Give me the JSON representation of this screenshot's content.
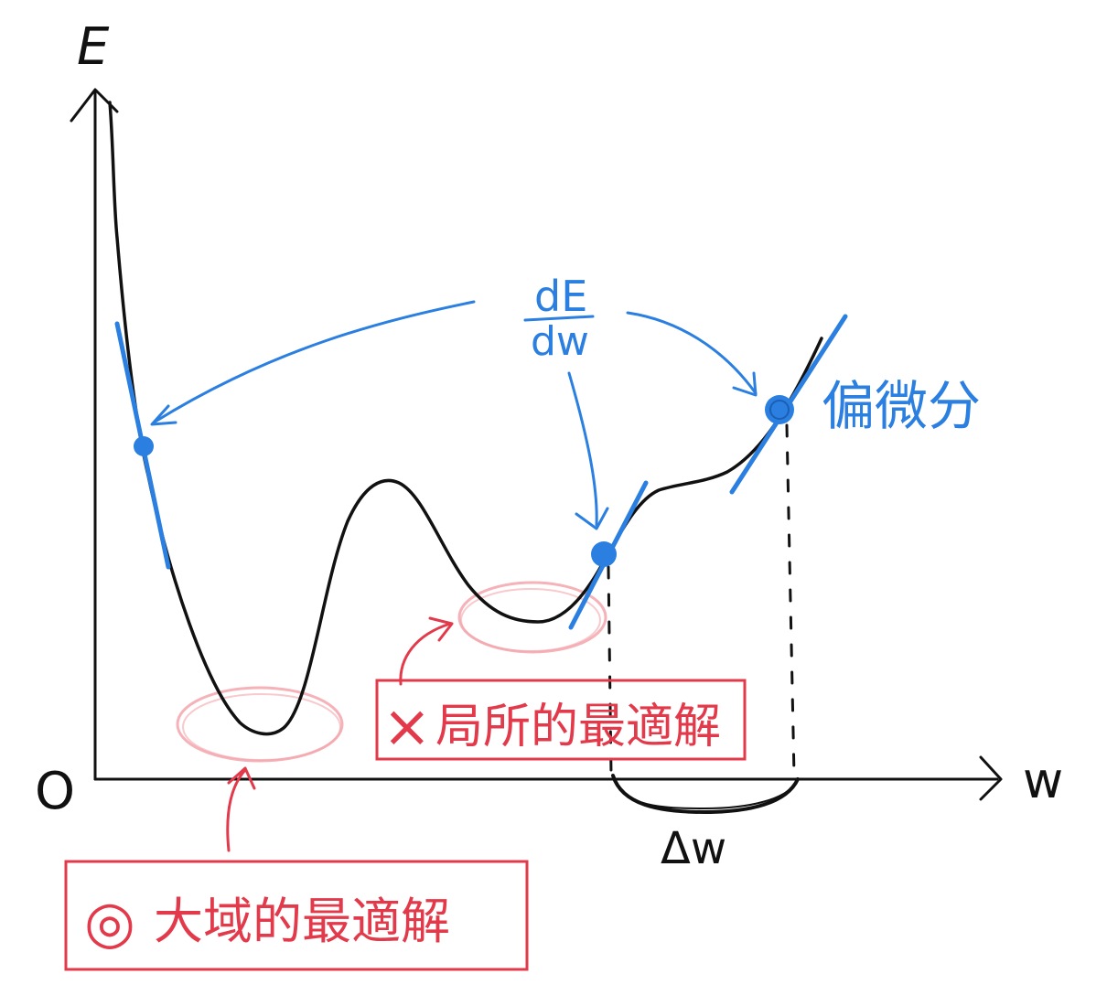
{
  "axes": {
    "y_label": "E",
    "x_label": "w",
    "origin_label": "O"
  },
  "derivative": {
    "numerator": "dE",
    "denominator": "dw",
    "side_label": "偏微分"
  },
  "interval": {
    "label": "Δw"
  },
  "local_box": {
    "mark": "×",
    "text": "局所的最適解"
  },
  "global_box": {
    "mark": "◎",
    "text": "大域的最適解"
  },
  "colors": {
    "curve": "#111111",
    "tangent": "#2a7fe0",
    "highlight": "#f3a5ab",
    "box": "#e23a4a"
  }
}
